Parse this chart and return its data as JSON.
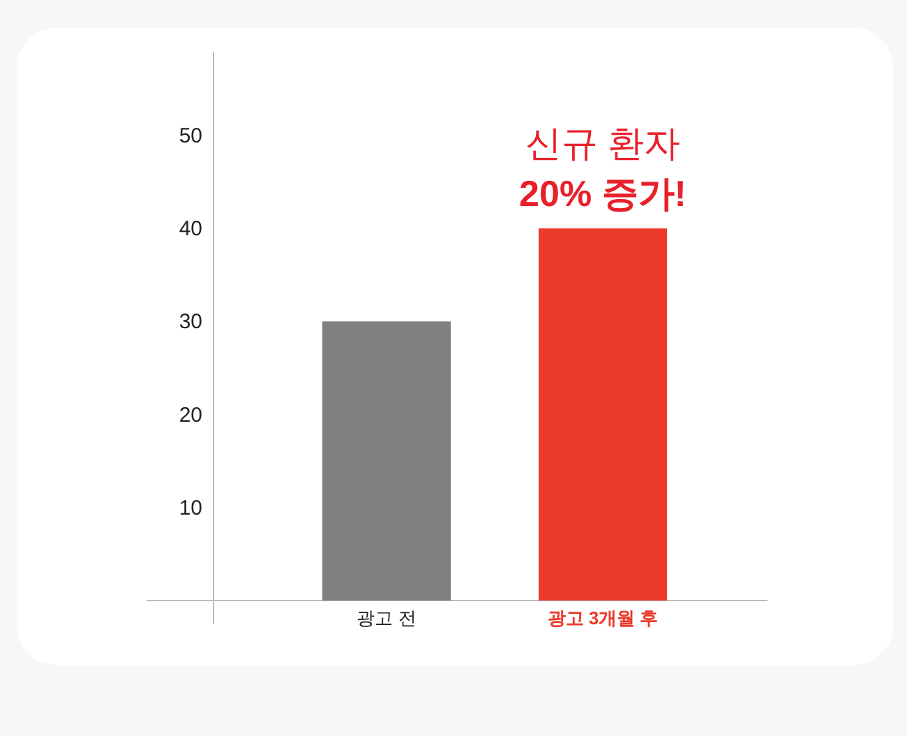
{
  "chart_data": {
    "type": "bar",
    "categories": [
      "광고 전",
      "광고 3개월 후"
    ],
    "values": [
      30,
      40
    ],
    "colors": [
      "#808080",
      "#ec3a2b"
    ],
    "ylim": [
      0,
      59
    ],
    "yticks": [
      10,
      20,
      30,
      40,
      50
    ],
    "grid": false,
    "annotations": [
      {
        "text": "신규 환자\n20% 증가!",
        "x": "광고 3개월 후",
        "y": 40
      }
    ]
  }
}
